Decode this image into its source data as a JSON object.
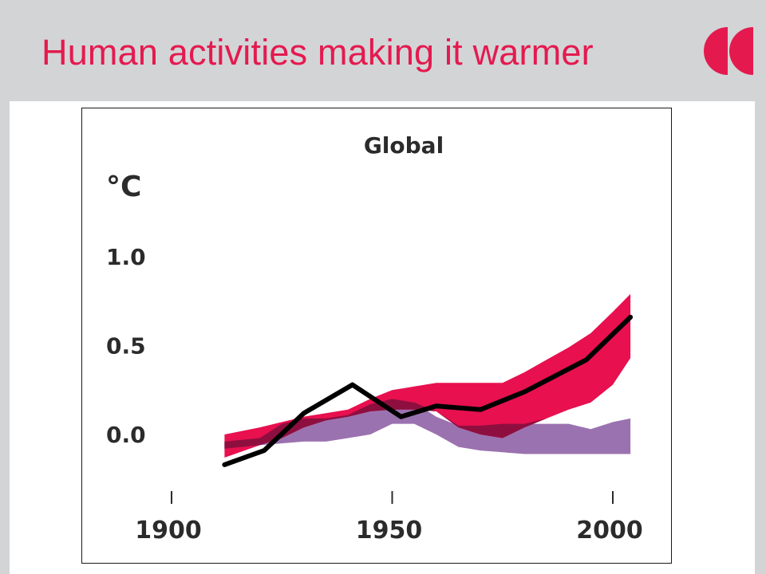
{
  "slide": {
    "title": "Human activities making it warmer"
  },
  "colors": {
    "title": "#e41a4f",
    "logo": "#e41a4f",
    "natural_band": "#9b72b0",
    "human_band": "#e8104f",
    "overlap_band": "#8e0f3f",
    "observed_line": "#000000"
  },
  "chart_data": {
    "type": "area",
    "title": "Global",
    "ylabel": "°C",
    "xlim": [
      1900,
      2000
    ],
    "ylim": [
      -0.25,
      1.0
    ],
    "x_ticks": [
      1900,
      1950,
      2000
    ],
    "x_tick_labels": [
      "1900",
      "1950",
      "2000"
    ],
    "y_ticks": [
      0.0,
      0.5,
      1.0
    ],
    "y_tick_labels": [
      "0.0",
      "0.5",
      "1.0"
    ],
    "grid": false,
    "series": [
      {
        "kind": "band",
        "x": [
          1912,
          1920,
          1925,
          1930,
          1935,
          1940,
          1945,
          1950,
          1955,
          1960,
          1965,
          1970,
          1975,
          1980,
          1985,
          1990,
          1995,
          2000,
          2004
        ],
        "low": [
          -0.08,
          -0.06,
          -0.05,
          -0.04,
          -0.04,
          -0.02,
          0.0,
          0.06,
          0.06,
          0.0,
          -0.07,
          -0.09,
          -0.1,
          -0.11,
          -0.11,
          -0.11,
          -0.11,
          -0.11,
          -0.11
        ],
        "high": [
          -0.04,
          -0.02,
          0.06,
          0.09,
          0.09,
          0.11,
          0.17,
          0.2,
          0.18,
          0.1,
          0.05,
          0.05,
          0.06,
          0.06,
          0.06,
          0.06,
          0.03,
          0.07,
          0.09
        ]
      },
      {
        "kind": "band",
        "x": [
          1912,
          1920,
          1925,
          1930,
          1935,
          1940,
          1945,
          1950,
          1955,
          1960,
          1965,
          1970,
          1975,
          1980,
          1985,
          1990,
          1995,
          2000,
          2004
        ],
        "low": [
          -0.13,
          -0.06,
          -0.02,
          0.04,
          0.08,
          0.1,
          0.13,
          0.14,
          0.14,
          0.13,
          0.04,
          0.0,
          -0.02,
          0.04,
          0.09,
          0.14,
          0.18,
          0.28,
          0.43
        ],
        "high": [
          0.0,
          0.04,
          0.07,
          0.1,
          0.12,
          0.14,
          0.2,
          0.25,
          0.27,
          0.29,
          0.29,
          0.29,
          0.29,
          0.35,
          0.42,
          0.49,
          0.57,
          0.69,
          0.79
        ]
      },
      {
        "kind": "line",
        "x": [
          1912,
          1921,
          1930,
          1941,
          1952,
          1960,
          1970,
          1980,
          1994,
          2004
        ],
        "y": [
          -0.17,
          -0.09,
          0.12,
          0.28,
          0.1,
          0.16,
          0.14,
          0.24,
          0.42,
          0.66
        ]
      }
    ]
  }
}
